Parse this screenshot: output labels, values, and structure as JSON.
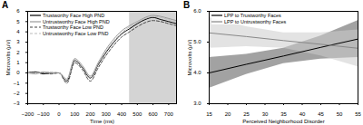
{
  "chart_data": [
    {
      "type": "line",
      "title": "A",
      "x_label": "Time (ms)",
      "y_label": "Microvolts (µV)",
      "x": [
        -200,
        -150,
        -100,
        -50,
        0,
        50,
        100,
        150,
        200,
        250,
        300,
        350,
        400,
        450,
        500,
        550,
        600,
        650,
        700,
        750
      ],
      "xlim": [
        -200,
        750
      ],
      "xticks": [
        -200,
        -100,
        0,
        100,
        200,
        300,
        400,
        500,
        600,
        700
      ],
      "ylim": [
        -3,
        6
      ],
      "yticks": [
        -3,
        -2,
        -1,
        0,
        1,
        2,
        3,
        4,
        5,
        6
      ],
      "shaded_region": [
        450,
        750
      ],
      "legend": "top-left",
      "series": [
        {
          "name": "Trustworthy Face High PND",
          "color": "#000000",
          "line_style": "solid",
          "values": [
            0,
            0.1,
            -0.1,
            0,
            0,
            -0.8,
            1.2,
            0.5,
            -0.5,
            0.8,
            2.0,
            3.0,
            3.8,
            4.3,
            4.8,
            5.2,
            5.4,
            5.2,
            5.0,
            4.8
          ]
        },
        {
          "name": "Untrustworthy Face High PND",
          "color": "#999999",
          "line_style": "solid",
          "values": [
            0,
            -0.1,
            0.1,
            0,
            0,
            -0.6,
            1.4,
            0.7,
            -0.3,
            1.0,
            2.3,
            3.3,
            4.1,
            4.6,
            5.0,
            5.4,
            5.6,
            5.5,
            5.3,
            5.1
          ]
        },
        {
          "name": "Trustworthy Face Low PND",
          "color": "#444444",
          "line_style": "dashed",
          "values": [
            0,
            0.1,
            0,
            -0.1,
            0,
            -1.0,
            1.0,
            0.3,
            -0.8,
            0.5,
            1.7,
            2.7,
            3.5,
            4.0,
            4.5,
            4.9,
            5.1,
            5.0,
            4.8,
            4.6
          ]
        },
        {
          "name": "Untrustworthy Face Low PND",
          "color": "#bbbbbb",
          "line_style": "dashed",
          "values": [
            0,
            0,
            0.1,
            0.1,
            0,
            -0.7,
            1.3,
            0.6,
            -0.4,
            0.9,
            2.1,
            3.1,
            3.9,
            4.5,
            5.0,
            5.3,
            5.5,
            5.4,
            5.2,
            5.0
          ]
        }
      ]
    },
    {
      "type": "line",
      "title": "B",
      "x_label": "Perceived Neighborhood Disorder",
      "y_label": "Microvolts (µV)",
      "x": [
        15,
        25,
        35,
        45,
        55
      ],
      "xlim": [
        15,
        55
      ],
      "xticks": [
        15,
        20,
        25,
        30,
        35,
        40,
        45,
        50,
        55
      ],
      "ylim": [
        3,
        6
      ],
      "yticks": [
        3,
        4,
        5,
        6
      ],
      "legend": "top-left",
      "series": [
        {
          "name": "LPP to Trustworthy Faces",
          "color": "#000000",
          "line_style": "solid",
          "values": [
            4.0,
            4.28,
            4.55,
            4.83,
            5.1
          ],
          "ci_lower": [
            3.5,
            3.95,
            4.3,
            4.45,
            4.5
          ],
          "ci_upper": [
            4.5,
            4.6,
            4.8,
            5.2,
            5.7
          ]
        },
        {
          "name": "LPP to Untrustworthy Faces",
          "color": "#888888",
          "line_style": "solid",
          "values": [
            5.3,
            5.18,
            5.05,
            4.93,
            4.8
          ],
          "ci_lower": [
            4.8,
            4.85,
            4.8,
            4.55,
            4.2
          ],
          "ci_upper": [
            5.8,
            5.5,
            5.3,
            5.3,
            5.4
          ]
        }
      ]
    }
  ]
}
